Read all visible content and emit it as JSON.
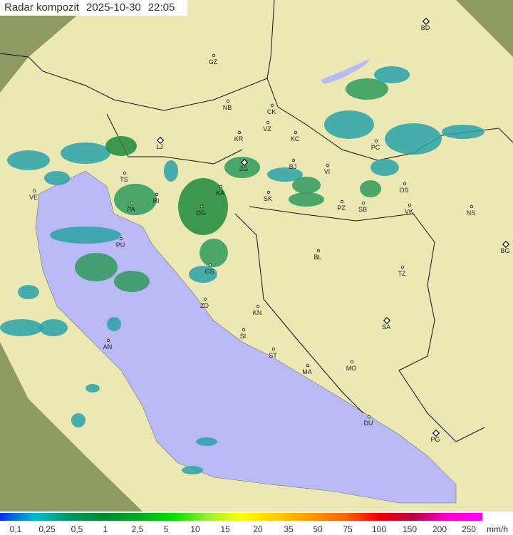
{
  "header": {
    "product": "Radar kompozit",
    "date": "2025-10-30",
    "time": "22:05"
  },
  "legend": {
    "unit": "mm/h",
    "labels": [
      "0,1",
      "0,25",
      "0,5",
      "1",
      "2,5",
      "5",
      "10",
      "15",
      "20",
      "35",
      "50",
      "75",
      "100",
      "150",
      "200",
      "250"
    ],
    "gradient": [
      "#0033ee",
      "#00bbcc",
      "#009966",
      "#008833",
      "#00aa22",
      "#00dd00",
      "#99ee33",
      "#ffff00",
      "#ffcc00",
      "#ff9900",
      "#ff6600",
      "#ee0000",
      "#bb0044",
      "#ff00cc",
      "#ff00ff"
    ]
  },
  "colors": {
    "sea": "#b9b9f5",
    "land": "#ece8b4",
    "outside": "#8f9a63",
    "rain_light": "#2aa2a8",
    "rain_mid": "#2f9a5c",
    "rain_heavy": "#1d8a3a"
  },
  "cities": [
    {
      "code": "BD",
      "icon": "diamond"
    },
    {
      "code": "GZ",
      "icon": "dot"
    },
    {
      "code": "NB",
      "icon": "dot"
    },
    {
      "code": "CK",
      "icon": "dot"
    },
    {
      "code": "VZ",
      "icon": "dot"
    },
    {
      "code": "KC",
      "icon": "dot"
    },
    {
      "code": "KR",
      "icon": "dot"
    },
    {
      "code": "LJ",
      "icon": "diamond"
    },
    {
      "code": "PC",
      "icon": "dot"
    },
    {
      "code": "BJ",
      "icon": "dot"
    },
    {
      "code": "VI",
      "icon": "dot"
    },
    {
      "code": "TS",
      "icon": "dot"
    },
    {
      "code": "ZG",
      "icon": "diamond"
    },
    {
      "code": "SK",
      "icon": "dot"
    },
    {
      "code": "KA",
      "icon": "dot"
    },
    {
      "code": "RI",
      "icon": "dot"
    },
    {
      "code": "OS",
      "icon": "dot"
    },
    {
      "code": "VE",
      "icon": "dot"
    },
    {
      "code": "PA",
      "icon": "dot"
    },
    {
      "code": "PZ",
      "icon": "dot"
    },
    {
      "code": "SB",
      "icon": "dot"
    },
    {
      "code": "VK",
      "icon": "dot"
    },
    {
      "code": "NS",
      "icon": "dot"
    },
    {
      "code": "OG",
      "icon": "dot"
    },
    {
      "code": "PU",
      "icon": "dot"
    },
    {
      "code": "BG",
      "icon": "diamond"
    },
    {
      "code": "GS",
      "icon": "dot"
    },
    {
      "code": "BL",
      "icon": "dot"
    },
    {
      "code": "TZ",
      "icon": "dot"
    },
    {
      "code": "ZD",
      "icon": "dot"
    },
    {
      "code": "KN",
      "icon": "dot"
    },
    {
      "code": "SA",
      "icon": "diamond"
    },
    {
      "code": "SI",
      "icon": "dot"
    },
    {
      "code": "AN",
      "icon": "dot"
    },
    {
      "code": "ST",
      "icon": "dot"
    },
    {
      "code": "MA",
      "icon": "dot"
    },
    {
      "code": "MO",
      "icon": "dot"
    },
    {
      "code": "DU",
      "icon": "dot"
    },
    {
      "code": "PG",
      "icon": "diamond"
    }
  ]
}
